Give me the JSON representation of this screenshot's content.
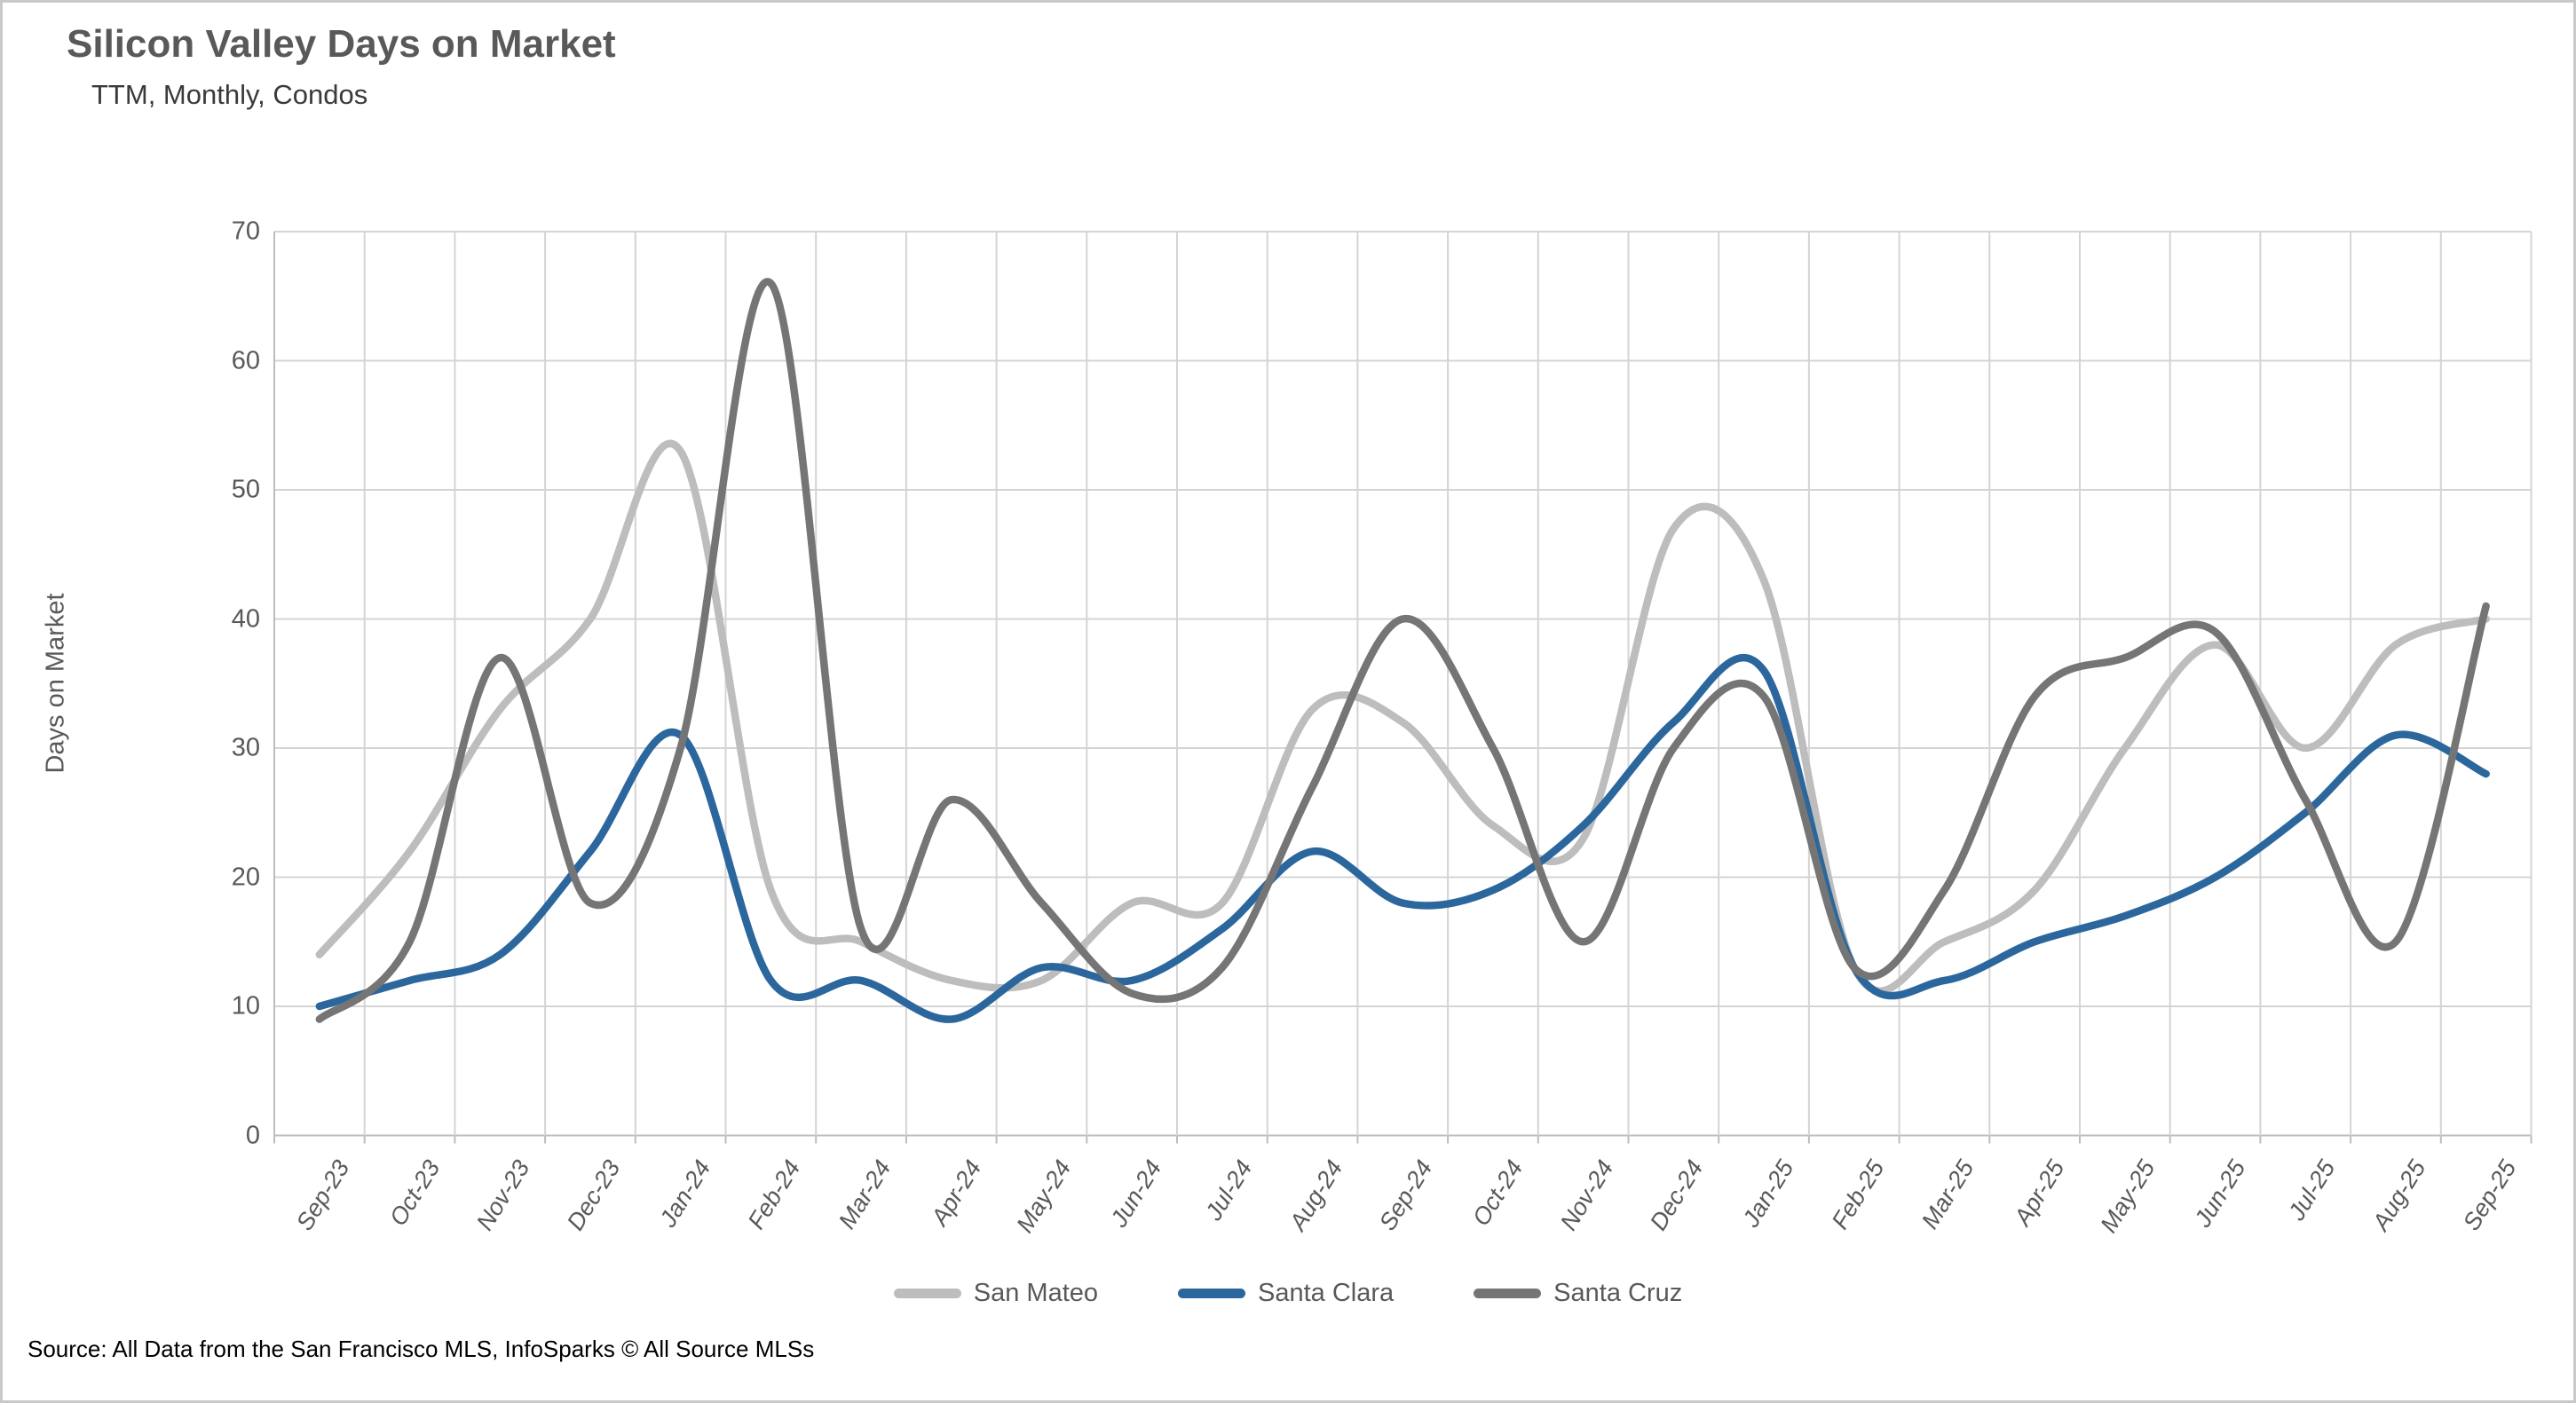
{
  "header": {
    "title": "Silicon Valley Days on Market",
    "subtitle": "TTM, Monthly, Condos"
  },
  "y_axis": {
    "title": "Days on Market",
    "tick_labels": [
      "0",
      "10",
      "20",
      "30",
      "40",
      "50",
      "60",
      "70"
    ]
  },
  "source": {
    "text": "Source: All Data from the San Francisco MLS, InfoSparks © All Source MLSs"
  },
  "colors": {
    "san_mateo": "#BDBDBD",
    "santa_clara": "#2B679D",
    "santa_cruz": "#757575",
    "gridline": "#D4D4D4",
    "axis_line": "#BDBDBD",
    "label_text": "#595959"
  },
  "chart_data": {
    "type": "line",
    "title": "Silicon Valley Days on Market",
    "subtitle": "TTM, Monthly, Condos",
    "xlabel": "",
    "ylabel": "Days on Market",
    "ylim": [
      0,
      70
    ],
    "y_tick_step": 10,
    "grid": true,
    "legend_position": "bottom",
    "categories": [
      "Sep-23",
      "Oct-23",
      "Nov-23",
      "Dec-23",
      "Jan-24",
      "Feb-24",
      "Mar-24",
      "Apr-24",
      "May-24",
      "Jun-24",
      "Jul-24",
      "Aug-24",
      "Sep-24",
      "Oct-24",
      "Nov-24",
      "Dec-24",
      "Jan-25",
      "Feb-25",
      "Mar-25",
      "Apr-25",
      "May-25",
      "Jun-25",
      "Jul-25",
      "Aug-25",
      "Sep-25"
    ],
    "series": [
      {
        "name": "San Mateo",
        "color": "#BDBDBD",
        "values": [
          14,
          22,
          33,
          40,
          53,
          19,
          15,
          12,
          12,
          18,
          18,
          33,
          32,
          24,
          23,
          47,
          43,
          13,
          15,
          19,
          30,
          38,
          30,
          38,
          40
        ]
      },
      {
        "name": "Santa Clara",
        "color": "#2B679D",
        "values": [
          10,
          12,
          14,
          22,
          31,
          12,
          12,
          9,
          13,
          12,
          16,
          22,
          18,
          19,
          24,
          32,
          36,
          13,
          12,
          15,
          17,
          20,
          25,
          31,
          28
        ]
      },
      {
        "name": "Santa Cruz",
        "color": "#757575",
        "values": [
          9,
          15,
          37,
          18,
          30,
          66,
          16,
          26,
          18,
          11,
          13,
          27,
          40,
          30,
          15,
          30,
          34,
          13,
          19,
          34,
          37,
          39,
          26,
          15,
          41
        ]
      }
    ]
  }
}
